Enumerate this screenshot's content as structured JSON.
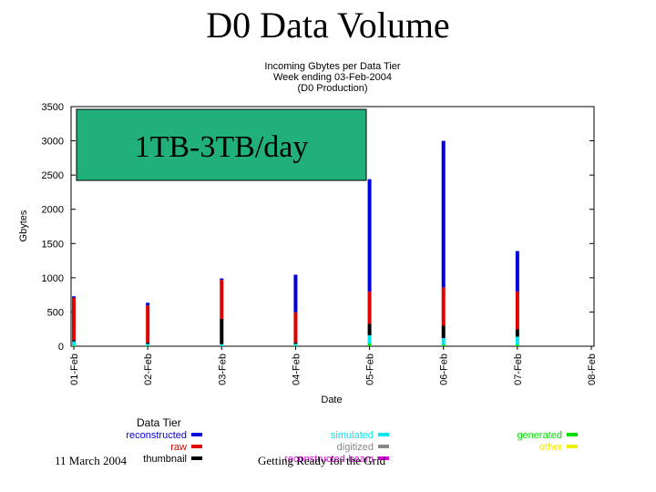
{
  "slide": {
    "title": "D0 Data Volume",
    "footer_date": "11 March 2004",
    "footer_text": "Getting Ready for the Grid"
  },
  "callout": {
    "text": "1TB-3TB/day",
    "fill": "#21b07a"
  },
  "chart_data": {
    "type": "bar",
    "stacked": true,
    "title": [
      "Incoming Gbytes per Data Tier",
      "Week ending 03-Feb-2004",
      "(D0 Production)"
    ],
    "xlabel": "Date",
    "ylabel": "Gbytes",
    "ylim": [
      0,
      3500
    ],
    "yticks": [
      0,
      500,
      1000,
      1500,
      2000,
      2500,
      3000,
      3500
    ],
    "categories": [
      "01-Feb",
      "02-Feb",
      "03-Feb",
      "04-Feb",
      "05-Feb",
      "06-Feb",
      "07-Feb",
      "08-Feb"
    ],
    "grid": false,
    "legend_title": "Data Tier",
    "series": [
      {
        "name": "generated",
        "color": "#00dd00",
        "values": [
          10,
          5,
          0,
          5,
          40,
          20,
          20,
          0
        ]
      },
      {
        "name": "simulated",
        "color": "#00e5ee",
        "values": [
          60,
          30,
          30,
          30,
          120,
          100,
          120,
          0
        ]
      },
      {
        "name": "thumbnail",
        "color": "#000000",
        "values": [
          20,
          20,
          370,
          20,
          170,
          180,
          110,
          0
        ]
      },
      {
        "name": "raw",
        "color": "#e00000",
        "values": [
          620,
          540,
          570,
          440,
          470,
          560,
          550,
          0
        ]
      },
      {
        "name": "reconstructed",
        "color": "#0000dd",
        "values": [
          20,
          40,
          20,
          550,
          1640,
          2140,
          590,
          0
        ]
      }
    ],
    "legend_columns": [
      [
        {
          "name": "reconstructed",
          "color": "#0000dd"
        },
        {
          "name": "raw",
          "color": "#e00000"
        },
        {
          "name": "thumbnail",
          "color": "#000000"
        }
      ],
      [
        {
          "name": "simulated",
          "color": "#00e5ee"
        },
        {
          "name": "digitized",
          "color": "#888888"
        },
        {
          "name": "reconstructed-beam",
          "color": "#dd00dd"
        }
      ],
      [
        {
          "name": "generated",
          "color": "#00dd00"
        },
        {
          "name": "other",
          "color": "#eeee00"
        }
      ]
    ]
  }
}
